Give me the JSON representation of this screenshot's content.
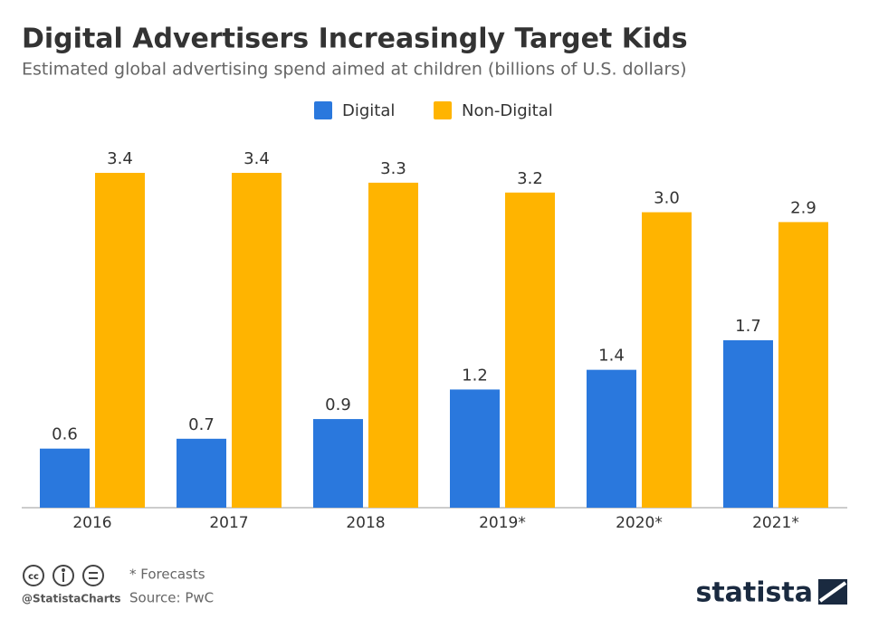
{
  "chart_data": {
    "type": "bar",
    "title": "Digital Advertisers Increasingly Target Kids",
    "subtitle": "Estimated global advertising spend aimed at children (billions of U.S. dollars)",
    "categories": [
      "2016",
      "2017",
      "2018",
      "2019*",
      "2020*",
      "2021*"
    ],
    "series": [
      {
        "name": "Digital",
        "color": "#2a78dd",
        "values": [
          0.6,
          0.7,
          0.9,
          1.2,
          1.4,
          1.7
        ]
      },
      {
        "name": "Non-Digital",
        "color": "#ffb400",
        "values": [
          3.4,
          3.4,
          3.3,
          3.2,
          3.0,
          2.9
        ],
        "value_labels": [
          "3.4",
          "3.4",
          "3.3",
          "3.2",
          "3.0",
          "2.9"
        ]
      }
    ],
    "legend": "top",
    "note": "* Forecasts",
    "source": "Source: PwC",
    "handle": "@StatistaCharts",
    "brand": "statista"
  }
}
